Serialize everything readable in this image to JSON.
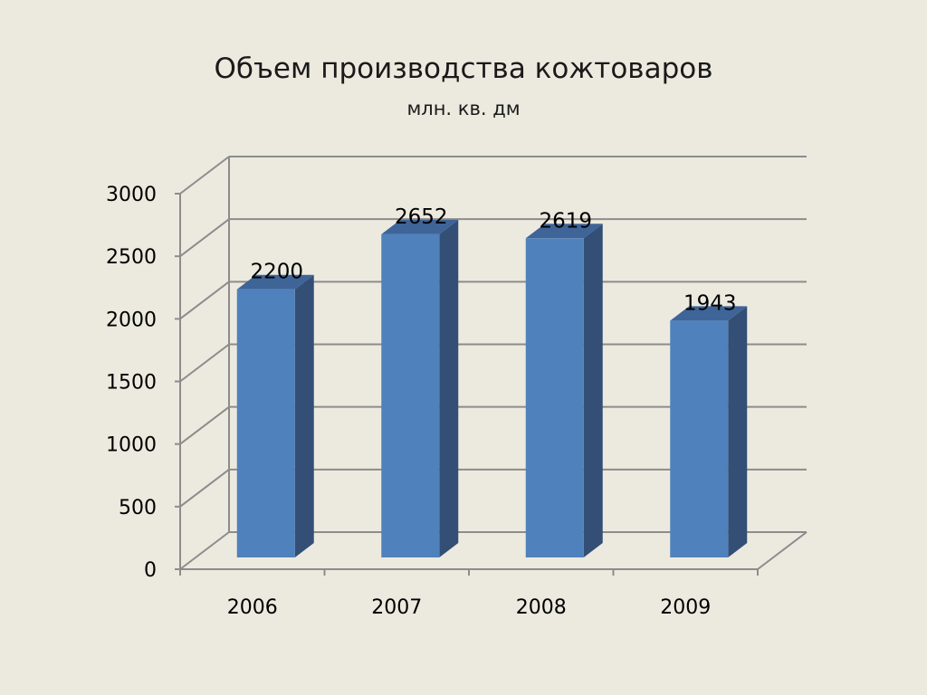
{
  "chart_data": {
    "type": "bar",
    "title": "Объем производства кожтоваров",
    "subtitle": "млн. кв. дм",
    "categories": [
      "2006",
      "2007",
      "2008",
      "2009"
    ],
    "values": [
      2200,
      2652,
      2619,
      1943
    ],
    "data_labels": [
      "2200",
      "2652",
      "2619",
      "1943"
    ],
    "yticks": [
      "0",
      "500",
      "1000",
      "1500",
      "2000",
      "2500",
      "3000"
    ],
    "ylim": [
      0,
      3000
    ],
    "grid": true,
    "legend": "none",
    "style": "3d-column",
    "colors": {
      "bar_front": "#4F81BD",
      "bar_side": "#344F76",
      "bar_top": "#3E6498",
      "grid": "#8C8C8C",
      "background": "#ECEADF"
    }
  }
}
